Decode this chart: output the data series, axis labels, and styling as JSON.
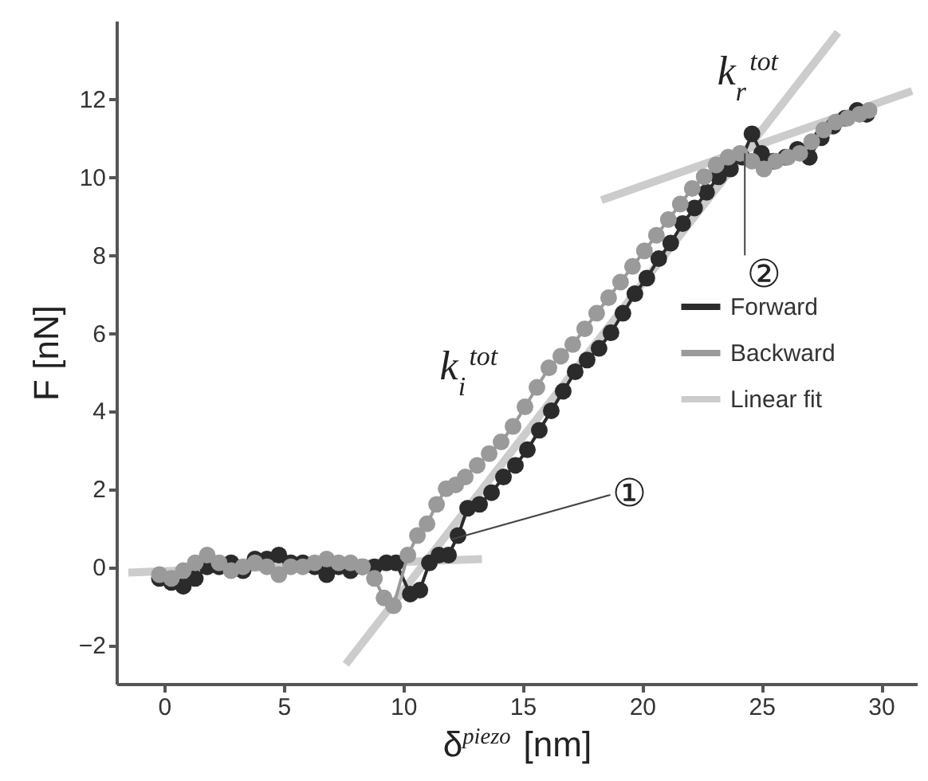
{
  "chart_data": {
    "type": "line",
    "xlabel": "δ$^{piezo}$ [nm]",
    "ylabel": "F [nN]",
    "xlim": [
      -2,
      31.5
    ],
    "ylim": [
      -3,
      14
    ],
    "xticks": [
      0,
      5,
      10,
      15,
      20,
      25,
      30
    ],
    "yticks": [
      -2,
      0,
      2,
      4,
      6,
      8,
      10,
      12
    ],
    "marker": "circle",
    "legend": "right",
    "grid": false,
    "series": [
      {
        "name": "Forward",
        "color": "#2b2b2b",
        "x": [
          -0.2,
          0.3,
          0.8,
          1.3,
          1.8,
          2.3,
          2.8,
          3.3,
          3.8,
          4.3,
          4.8,
          5.3,
          5.8,
          6.3,
          6.8,
          7.3,
          7.8,
          8.3,
          8.8,
          9.3,
          9.7,
          10.3,
          10.7,
          11.1,
          11.5,
          11.9,
          12.3,
          12.7,
          13.2,
          13.7,
          14.2,
          14.7,
          15.2,
          15.7,
          16.2,
          16.7,
          17.2,
          17.7,
          18.2,
          18.7,
          19.2,
          19.7,
          20.2,
          20.7,
          21.2,
          21.7,
          22.2,
          22.7,
          23.2,
          23.7,
          24.2,
          24.6,
          25.0,
          25.5,
          26.0,
          26.5,
          27.0,
          27.5,
          28.0,
          28.5,
          29.0,
          29.4
        ],
        "values": [
          -0.3,
          -0.4,
          -0.5,
          -0.3,
          0,
          0,
          0.1,
          -0.1,
          0.2,
          0.2,
          0.3,
          0.1,
          0.1,
          0,
          -0.2,
          0,
          -0.1,
          0,
          0,
          0.1,
          0.1,
          -0.7,
          -0.6,
          0.1,
          0.3,
          0.3,
          0.8,
          1.5,
          1.6,
          1.9,
          2.3,
          2.6,
          3.0,
          3.5,
          4.0,
          4.5,
          5.0,
          5.3,
          5.6,
          6.0,
          6.5,
          7.0,
          7.4,
          7.9,
          8.3,
          8.8,
          9.2,
          9.6,
          10.0,
          10.2,
          10.5,
          11.1,
          10.6,
          10.4,
          10.5,
          10.7,
          10.5,
          11.0,
          11.3,
          11.5,
          11.7,
          11.6
        ]
      },
      {
        "name": "Backward",
        "color": "#9a9a9a",
        "x": [
          -0.2,
          0.3,
          0.8,
          1.3,
          1.8,
          2.3,
          2.8,
          3.3,
          3.8,
          4.3,
          4.8,
          5.3,
          5.8,
          6.3,
          6.8,
          7.3,
          7.8,
          8.3,
          8.8,
          9.2,
          9.6,
          10.2,
          10.6,
          11.0,
          11.4,
          11.8,
          12.2,
          12.6,
          13.1,
          13.6,
          14.1,
          14.6,
          15.1,
          15.6,
          16.1,
          16.6,
          17.1,
          17.6,
          18.1,
          18.6,
          19.1,
          19.6,
          20.1,
          20.6,
          21.1,
          21.6,
          22.1,
          22.6,
          23.1,
          23.6,
          24.1,
          24.6,
          25.1,
          25.6,
          26.1,
          26.6,
          27.1,
          27.6,
          28.1,
          28.6,
          29.1,
          29.5
        ],
        "values": [
          -0.2,
          -0.3,
          -0.1,
          0.1,
          0.3,
          0.1,
          -0.1,
          0,
          0.1,
          0,
          -0.2,
          0,
          0,
          0.1,
          0.2,
          0.1,
          0.1,
          0,
          -0.3,
          -0.8,
          -1.0,
          0.3,
          0.8,
          1.1,
          1.6,
          2.0,
          2.1,
          2.3,
          2.6,
          2.9,
          3.2,
          3.6,
          4.1,
          4.6,
          5.1,
          5.4,
          5.7,
          6.1,
          6.5,
          6.9,
          7.3,
          7.7,
          8.1,
          8.5,
          8.9,
          9.3,
          9.7,
          10.0,
          10.3,
          10.5,
          10.6,
          10.4,
          10.2,
          10.4,
          10.5,
          10.6,
          10.9,
          11.2,
          11.4,
          11.5,
          11.6,
          11.7
        ]
      },
      {
        "name": "Linear fit",
        "type": "line",
        "marker": "none",
        "color": "#cccccc",
        "x": [
          -1.5,
          13.3
        ],
        "values": [
          -0.15,
          0.2
        ]
      },
      {
        "type": "line",
        "marker": "none",
        "color": "#cccccc",
        "x": [
          7.6,
          28.2
        ],
        "values": [
          -2.5,
          13.7
        ]
      },
      {
        "type": "line",
        "marker": "none",
        "color": "#cccccc",
        "x": [
          18.3,
          31.3
        ],
        "values": [
          9.4,
          12.2
        ]
      }
    ],
    "annotations": [
      "k$_{i}$$^{tot}$",
      "k$_{r}$$^{tot}$",
      {
        "text": "①",
        "x": 12.0,
        "y": 0.7
      },
      {
        "text": "②",
        "x": 24.3,
        "y": 10.6
      }
    ]
  }
}
